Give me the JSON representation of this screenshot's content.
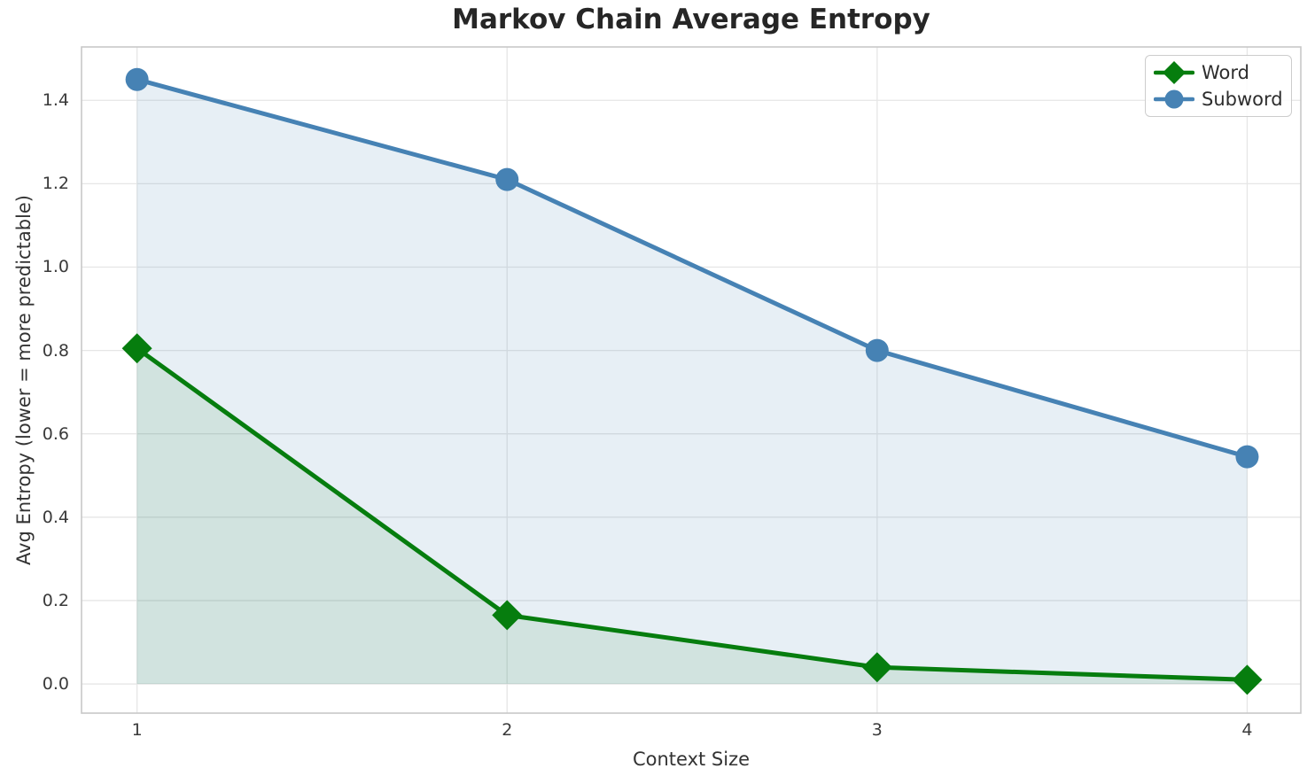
{
  "chart_data": {
    "type": "line",
    "title": "Markov Chain Average Entropy",
    "xlabel": "Context Size",
    "ylabel": "Avg Entropy (lower = more predictable)",
    "x": [
      1,
      2,
      3,
      4
    ],
    "series": [
      {
        "name": "Word",
        "values": [
          0.805,
          0.165,
          0.04,
          0.01
        ],
        "color": "#067d0e",
        "fill_color": "rgba(6,125,14,0.10)",
        "marker": "diamond"
      },
      {
        "name": "Subword",
        "values": [
          1.45,
          1.21,
          0.8,
          0.545
        ],
        "color": "#4682b4",
        "fill_color": "rgba(70,130,180,0.13)",
        "marker": "circle"
      }
    ],
    "xticks": [
      "1",
      "2",
      "3",
      "4"
    ],
    "yticks": [
      "0.0",
      "0.2",
      "0.4",
      "0.6",
      "0.8",
      "1.0",
      "1.2",
      "1.4"
    ],
    "xlim": [
      0.85,
      4.145
    ],
    "ylim": [
      -0.07,
      1.528
    ],
    "fill_baseline": 0,
    "grid": true,
    "legend": {
      "position": "upper right",
      "entries": [
        "Word",
        "Subword"
      ]
    },
    "colors": {
      "grid": "#e6e6e6",
      "spine": "#c8c8c8",
      "tick_text": "#3a3a3a",
      "title_text": "#262626"
    }
  }
}
